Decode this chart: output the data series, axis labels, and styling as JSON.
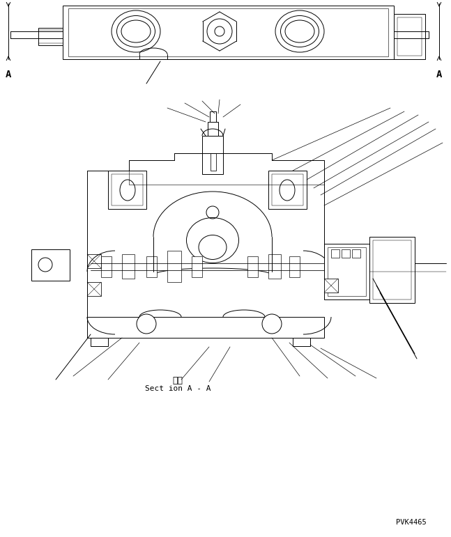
{
  "background_color": "#ffffff",
  "line_color": "#000000",
  "section_label_jp": "断面",
  "section_label_en": "Sect ion A - A",
  "drawing_number": "PVK4465",
  "label_A_left": "A",
  "label_A_right": "A",
  "figsize": [
    6.47,
    7.71
  ],
  "dpi": 100
}
